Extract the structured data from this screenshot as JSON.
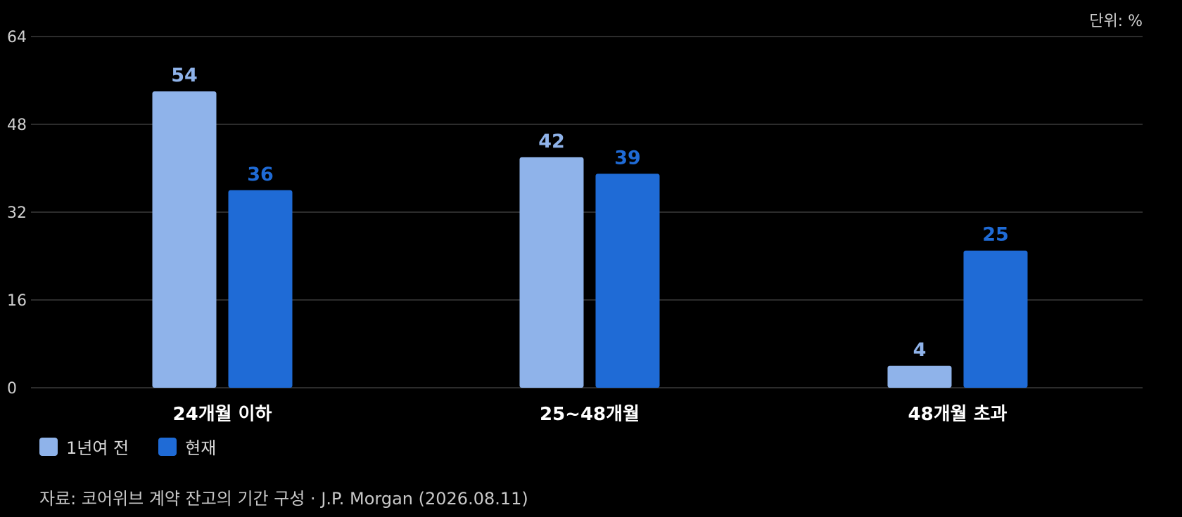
{
  "unit_label": "단위: %",
  "source": "자료: 코어위브 계약 잔고의 기간 구성 · J.P. Morgan (2026.08.11)",
  "colors": {
    "background": "#000000",
    "series_prev": "#8fb3ea",
    "series_now": "#1f6bd6",
    "grid": "#3a3a3a"
  },
  "chart_data": {
    "type": "bar",
    "categories": [
      "24개월 이하",
      "25~48개월",
      "48개월 초과"
    ],
    "series": [
      {
        "name": "1년여 전",
        "values": [
          54,
          42,
          4
        ]
      },
      {
        "name": "현재",
        "values": [
          36,
          39,
          25
        ]
      }
    ],
    "ylim": [
      0,
      64
    ],
    "yticks": [
      0,
      16,
      32,
      48,
      64
    ],
    "grid": true,
    "legend_position": "bottom-left"
  }
}
